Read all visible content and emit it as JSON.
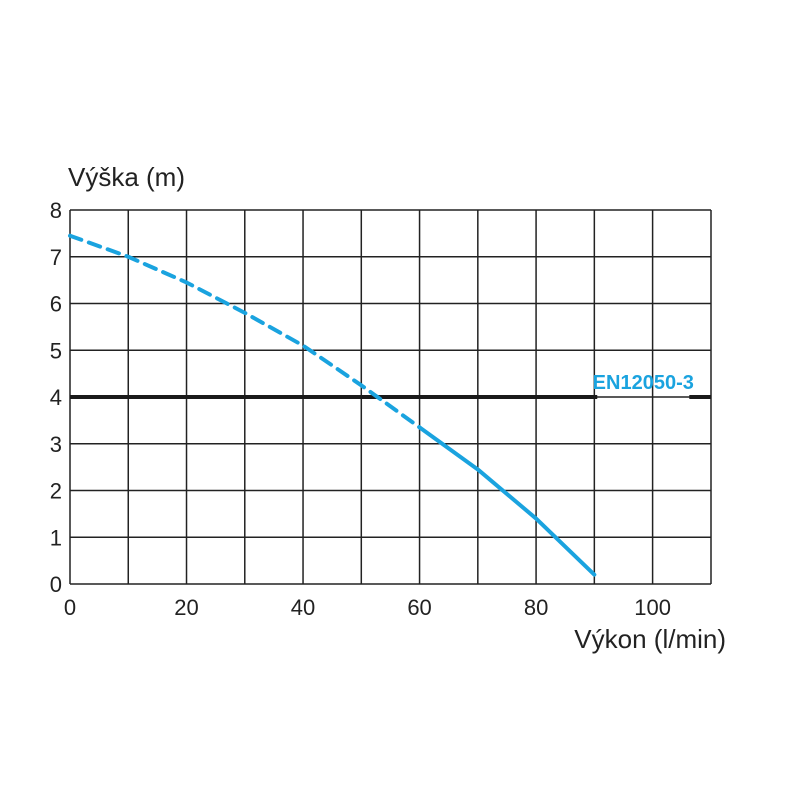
{
  "chart_data": {
    "type": "line",
    "title": "",
    "xlabel": "Výkon (l/min)",
    "ylabel": "Výška (m)",
    "xlim": [
      0,
      110
    ],
    "ylim": [
      0,
      8
    ],
    "x_ticks": [
      0,
      20,
      40,
      60,
      80,
      100
    ],
    "y_ticks": [
      0,
      1,
      2,
      3,
      4,
      5,
      6,
      7,
      8
    ],
    "grid": true,
    "series": [
      {
        "color": "#1aa3df",
        "segments": [
          {
            "style": "dashed",
            "x": [
              0,
              10,
              20,
              30,
              40,
              50,
              60
            ],
            "y": [
              7.45,
              7.0,
              6.45,
              5.8,
              5.1,
              4.25,
              3.35
            ]
          },
          {
            "style": "solid",
            "x": [
              60,
              70,
              80,
              90
            ],
            "y": [
              3.35,
              2.45,
              1.4,
              0.2
            ]
          }
        ]
      }
    ],
    "reference_line": {
      "y": 4,
      "label": "EN12050-3",
      "color": "#1a1a1a",
      "label_color": "#1aa3df"
    }
  }
}
